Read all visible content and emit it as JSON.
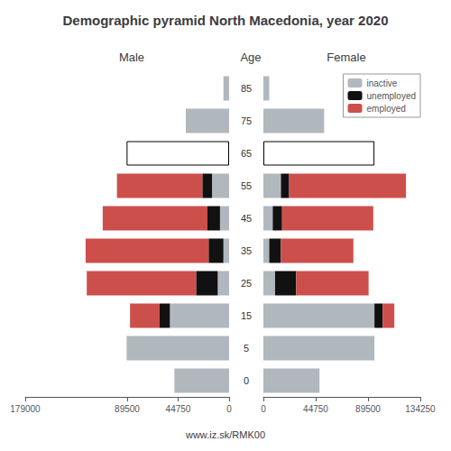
{
  "title": "Demographic pyramid North Macedonia, year 2020",
  "subtitle": "www.iz.sk/RMK00",
  "chart_data": [
    {
      "type": "bar",
      "orientation": "horizontal",
      "stacked": true,
      "grid": false,
      "title": "Male",
      "categories": [
        "85",
        "75",
        "65",
        "55",
        "45",
        "35",
        "25",
        "15",
        "5",
        "0"
      ],
      "xlim": [
        179000,
        0
      ],
      "xticks": [
        179000,
        89500,
        44750,
        0
      ],
      "series": [
        {
          "name": "inactive",
          "color": "#b0b8be",
          "colors": [
            "#b0b8be",
            "#b0b8be",
            "#ffffff",
            "#b0b8be",
            "#b0b8be",
            "#b0b8be",
            "#b0b8be",
            "#b0b8be",
            "#b0b8be",
            "#b0b8be"
          ],
          "values": [
            5000,
            38000,
            90000,
            15000,
            8000,
            5000,
            10000,
            52000,
            90000,
            48000
          ]
        },
        {
          "name": "unemployed",
          "color": "#111111",
          "values": [
            0,
            0,
            0,
            8500,
            11000,
            13000,
            19000,
            9000,
            0,
            0
          ]
        },
        {
          "name": "employed",
          "color": "#cd4f4b",
          "values": [
            0,
            0,
            0,
            75000,
            92000,
            108000,
            96000,
            26000,
            0,
            0
          ]
        }
      ]
    },
    {
      "type": "bar",
      "orientation": "horizontal",
      "stacked": true,
      "grid": false,
      "title": "Female",
      "ylabel": "Age",
      "legend": "upper right",
      "categories": [
        "85",
        "75",
        "65",
        "55",
        "45",
        "35",
        "25",
        "15",
        "5",
        "0"
      ],
      "xlim": [
        0,
        134250
      ],
      "xticks": [
        0,
        44750,
        89500,
        134250
      ],
      "series": [
        {
          "name": "inactive",
          "color": "#b0b8be",
          "colors": [
            "#b0b8be",
            "#b0b8be",
            "#ffffff",
            "#b0b8be",
            "#b0b8be",
            "#b0b8be",
            "#b0b8be",
            "#b0b8be",
            "#b0b8be",
            "#b0b8be"
          ],
          "values": [
            5000,
            52000,
            95000,
            15000,
            8000,
            5000,
            10000,
            95000,
            95000,
            48000
          ]
        },
        {
          "name": "unemployed",
          "color": "#111111",
          "values": [
            0,
            0,
            0,
            7000,
            8000,
            10000,
            18000,
            7000,
            0,
            0
          ]
        },
        {
          "name": "employed",
          "color": "#cd4f4b",
          "values": [
            0,
            0,
            0,
            100000,
            78000,
            62000,
            62000,
            10000,
            0,
            0
          ]
        }
      ]
    }
  ]
}
